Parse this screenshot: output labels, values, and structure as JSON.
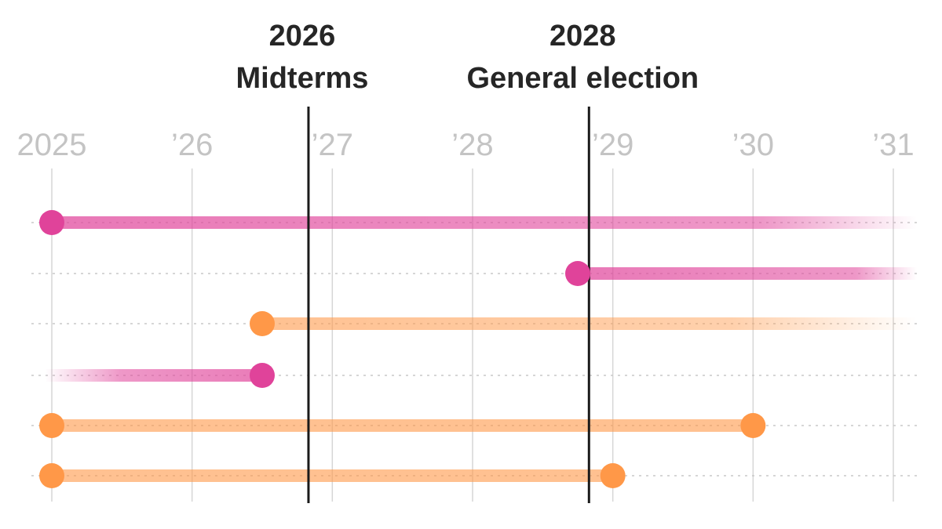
{
  "chart_data": {
    "type": "timeline",
    "x_ticks": [
      {
        "value": 2025,
        "label": "2025"
      },
      {
        "value": 2026,
        "label": "’26"
      },
      {
        "value": 2027,
        "label": "’27"
      },
      {
        "value": 2028,
        "label": "’28"
      },
      {
        "value": 2029,
        "label": "’29"
      },
      {
        "value": 2030,
        "label": "’30"
      },
      {
        "value": 2031,
        "label": "’31"
      }
    ],
    "xlim": [
      2025,
      2031
    ],
    "events": [
      {
        "year_line": "2026",
        "name": "Midterms",
        "x": 2026.83
      },
      {
        "year_line": "2028",
        "name": "General election",
        "x": 2028.83
      }
    ],
    "series_colors": {
      "pink": "#e0439a",
      "orange": "#ff9848"
    },
    "rows": [
      {
        "color": "pink",
        "start": 2025.0,
        "end": 2031.2,
        "start_dot": true,
        "end_dot": false,
        "fade": "right"
      },
      {
        "color": "pink",
        "start": 2028.75,
        "end": 2031.2,
        "start_dot": true,
        "end_dot": false,
        "fade": "right"
      },
      {
        "color": "orange",
        "start": 2026.5,
        "end": 2031.2,
        "start_dot": true,
        "end_dot": false,
        "fade": "right"
      },
      {
        "color": "pink",
        "start": 2024.95,
        "end": 2026.5,
        "start_dot": false,
        "end_dot": true,
        "fade": "left"
      },
      {
        "color": "orange",
        "start": 2025.0,
        "end": 2030.0,
        "start_dot": true,
        "end_dot": true,
        "fade": "none"
      },
      {
        "color": "orange",
        "start": 2025.0,
        "end": 2029.0,
        "start_dot": true,
        "end_dot": true,
        "fade": "none"
      }
    ]
  }
}
